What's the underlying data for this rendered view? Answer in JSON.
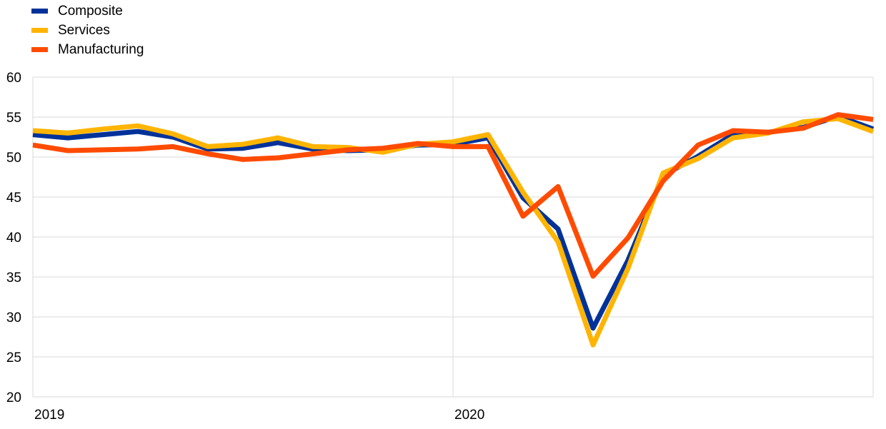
{
  "legend": {
    "items": [
      {
        "label": "Composite",
        "color": "#003299"
      },
      {
        "label": "Services",
        "color": "#FFB400"
      },
      {
        "label": "Manufacturing",
        "color": "#FF4B00"
      }
    ]
  },
  "chart_data": {
    "type": "line",
    "title": "",
    "xlabel": "",
    "ylabel": "",
    "ylim": [
      20,
      60
    ],
    "y_ticks": [
      "60",
      "55",
      "50",
      "45",
      "40",
      "35",
      "30",
      "25",
      "20"
    ],
    "x_ticks": [
      "2019",
      "2020"
    ],
    "grid": true,
    "legend_position": "top-left",
    "x": [
      "2019-01",
      "2019-02",
      "2019-03",
      "2019-04",
      "2019-05",
      "2019-06",
      "2019-07",
      "2019-08",
      "2019-09",
      "2019-10",
      "2019-11",
      "2019-12",
      "2020-01",
      "2020-02",
      "2020-03",
      "2020-04",
      "2020-05",
      "2020-06",
      "2020-07",
      "2020-08",
      "2020-09",
      "2020-10",
      "2020-11",
      "2020-12",
      "2021-01"
    ],
    "series": [
      {
        "name": "Composite",
        "color": "#003299",
        "values": [
          52.8,
          52.4,
          52.8,
          53.2,
          52.5,
          51.0,
          51.1,
          51.8,
          51.0,
          50.8,
          50.9,
          51.5,
          51.6,
          52.4,
          44.9,
          41.0,
          28.6,
          37.1,
          47.7,
          50.1,
          52.8,
          53.1,
          53.7,
          55.1,
          53.5
        ]
      },
      {
        "name": "Services",
        "color": "#FFB400",
        "values": [
          53.3,
          53.0,
          53.5,
          53.9,
          52.9,
          51.3,
          51.6,
          52.4,
          51.3,
          51.2,
          50.6,
          51.6,
          51.9,
          52.8,
          45.6,
          39.4,
          26.5,
          36.1,
          48.0,
          49.8,
          52.4,
          53.0,
          54.4,
          54.8,
          53.2
        ]
      },
      {
        "name": "Manufacturing",
        "color": "#FF4B00",
        "values": [
          51.5,
          50.8,
          50.9,
          51.0,
          51.3,
          50.4,
          49.7,
          49.9,
          50.4,
          50.9,
          51.1,
          51.7,
          51.3,
          51.3,
          42.6,
          46.3,
          35.1,
          39.9,
          47.0,
          51.5,
          53.3,
          53.1,
          53.6,
          55.3,
          54.7
        ]
      }
    ]
  }
}
